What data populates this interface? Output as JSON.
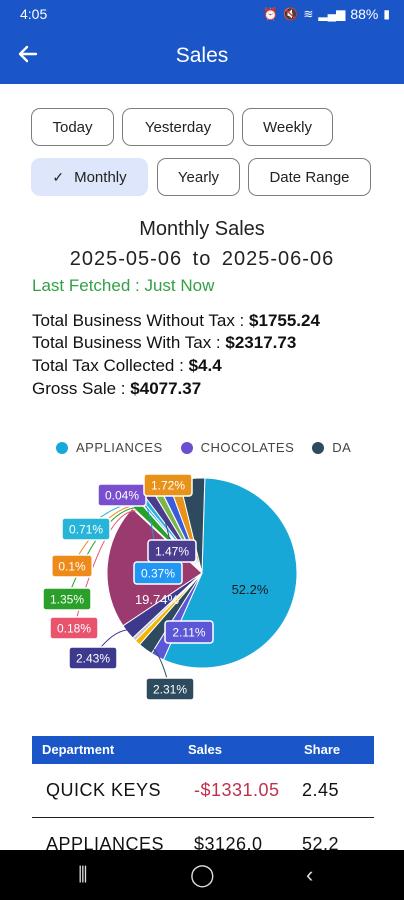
{
  "status_bar": {
    "time": "4:05",
    "battery": "88%"
  },
  "app_bar": {
    "title": "Sales"
  },
  "filters": [
    {
      "label": "Today",
      "selected": false
    },
    {
      "label": "Yesterday",
      "selected": false
    },
    {
      "label": "Weekly",
      "selected": false
    },
    {
      "label": "Monthly",
      "selected": true
    },
    {
      "label": "Yearly",
      "selected": false
    },
    {
      "label": "Date Range",
      "selected": false
    }
  ],
  "summary": {
    "heading": "Monthly Sales",
    "from_date": "2025-05-06",
    "to_word": "to",
    "to_date": "2025-06-06",
    "last_fetched": "Last Fetched : Just Now",
    "without_tax_label": "Total Business Without Tax :",
    "without_tax_value": "$1755.24",
    "with_tax_label": "Total Business With Tax :",
    "with_tax_value": "$2317.73",
    "tax_label": "Total Tax Collected :",
    "tax_value": "$4.4",
    "gross_label": "Gross Sale :",
    "gross_value": "$4077.37"
  },
  "chart_data": {
    "type": "pie",
    "legend": [
      {
        "label": "APPLIANCES",
        "color": "#18a8d8"
      },
      {
        "label": "CHOCOLATES",
        "color": "#6a4fcf"
      },
      {
        "label": "DA",
        "color": "#2e4a5e"
      }
    ],
    "slices": [
      {
        "label": "52.2%",
        "value": 52.2,
        "color": "#18a8d8"
      },
      {
        "label": "2.11%",
        "value": 2.11,
        "color": "#5b57d6"
      },
      {
        "label": "2.31%",
        "value": 2.31,
        "color": "#2e4a5e"
      },
      {
        "label": "",
        "value": 0.9,
        "color": "#f5b400"
      },
      {
        "label": "",
        "value": 0.6,
        "color": "#c9c9c9"
      },
      {
        "label": "2.43%",
        "value": 2.43,
        "color": "#3d3a8e"
      },
      {
        "label": "19.74%",
        "value": 19.74,
        "color": "#9b3a6e"
      },
      {
        "label": "0.18%",
        "value": 0.18,
        "color": "#e8546e"
      },
      {
        "label": "1.35%",
        "value": 1.35,
        "color": "#2aa02a"
      },
      {
        "label": "0.1%",
        "value": 0.1,
        "color": "#ee8a1a"
      },
      {
        "label": "0.37%",
        "value": 0.37,
        "color": "#2196f3"
      },
      {
        "label": "0.71%",
        "value": 0.71,
        "color": "#26b5d8"
      },
      {
        "label": "1.47%",
        "value": 1.47,
        "color": "#4a3d8f"
      },
      {
        "label": "",
        "value": 1.2,
        "color": "#7ab648"
      },
      {
        "label": "0.04%",
        "value": 0.04,
        "color": "#7a4fcf"
      },
      {
        "label": "",
        "value": 1.5,
        "color": "#3b5bdb"
      },
      {
        "label": "1.72%",
        "value": 1.72,
        "color": "#e8921a"
      },
      {
        "label": "",
        "value": 4.0,
        "color": "#2e4a5e"
      }
    ]
  },
  "table": {
    "headers": [
      "Department",
      "Sales",
      "Share"
    ],
    "rows": [
      {
        "department": "QUICK KEYS",
        "sales": "-$1331.05",
        "share": "2.45",
        "sales_color": "#c0304a"
      },
      {
        "department": "APPLIANCES",
        "sales": "$3126.0",
        "share": "52.2",
        "sales_color": "#222222"
      }
    ]
  }
}
